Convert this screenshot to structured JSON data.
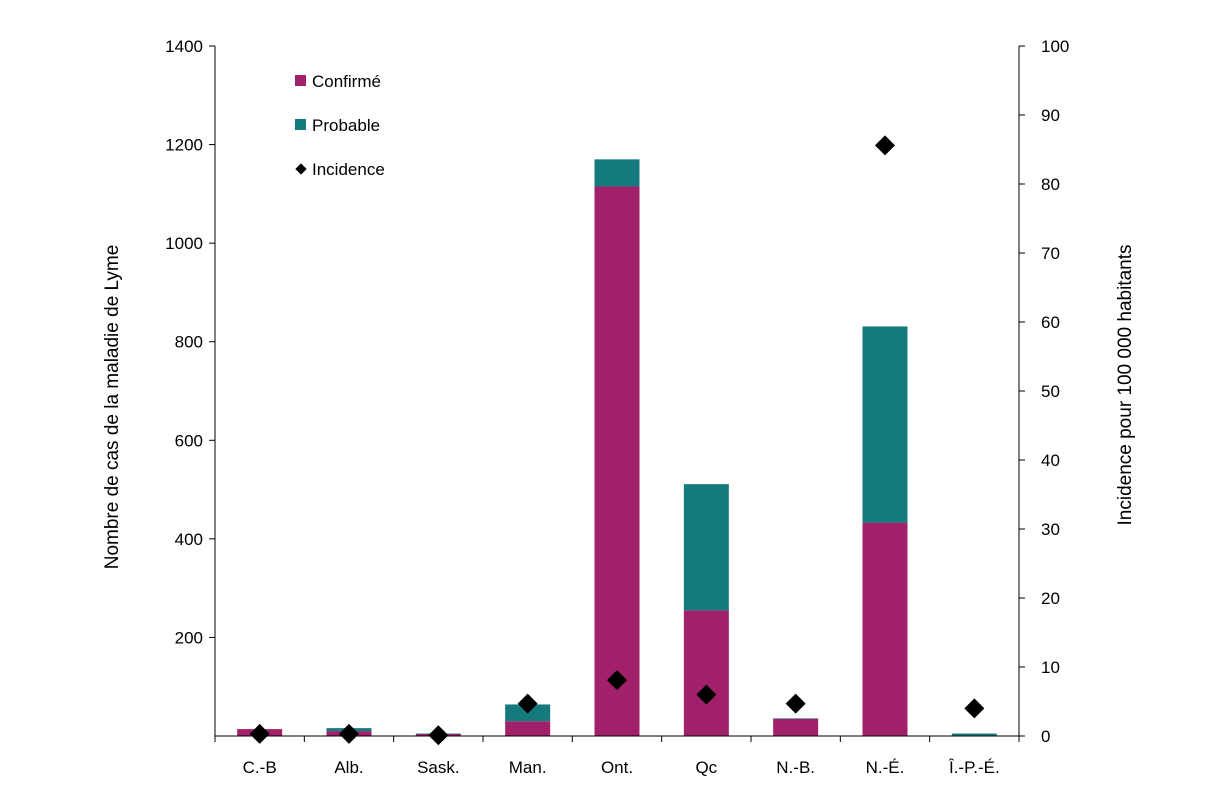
{
  "chart_data": {
    "type": "bar",
    "stacked": true,
    "categories": [
      "C.-B",
      "Alb.",
      "Sask.",
      "Man.",
      "Ont.",
      "Qc",
      "N.-B.",
      "N.-É.",
      "Î.-P.-É."
    ],
    "series": [
      {
        "name": "Confirmé",
        "color": "#A0206A",
        "values": [
          14,
          10,
          4,
          30,
          1115,
          255,
          35,
          433,
          0
        ]
      },
      {
        "name": "Probable",
        "color": "#147A7E",
        "values": [
          0,
          6,
          1,
          34,
          55,
          256,
          1,
          398,
          5
        ]
      }
    ],
    "incidence": {
      "name": "Incidence",
      "color": "#000000",
      "values": [
        0.3,
        0.3,
        0.1,
        4.7,
        8.1,
        6.0,
        4.7,
        85.6,
        4.0
      ]
    },
    "ylabel": "Nombre de cas de la maladie de Lyme",
    "y2label": "Incidence pour 100 000 habitants",
    "ylim": [
      0,
      1400
    ],
    "y2lim": [
      0,
      100
    ],
    "yticks": [
      "200",
      "400",
      "600",
      "800",
      "1000",
      "1200",
      "1400"
    ],
    "y2ticks": [
      "0",
      "10",
      "20",
      "30",
      "40",
      "50",
      "60",
      "70",
      "80",
      "90",
      "100"
    ],
    "legend_position": "top-left"
  }
}
